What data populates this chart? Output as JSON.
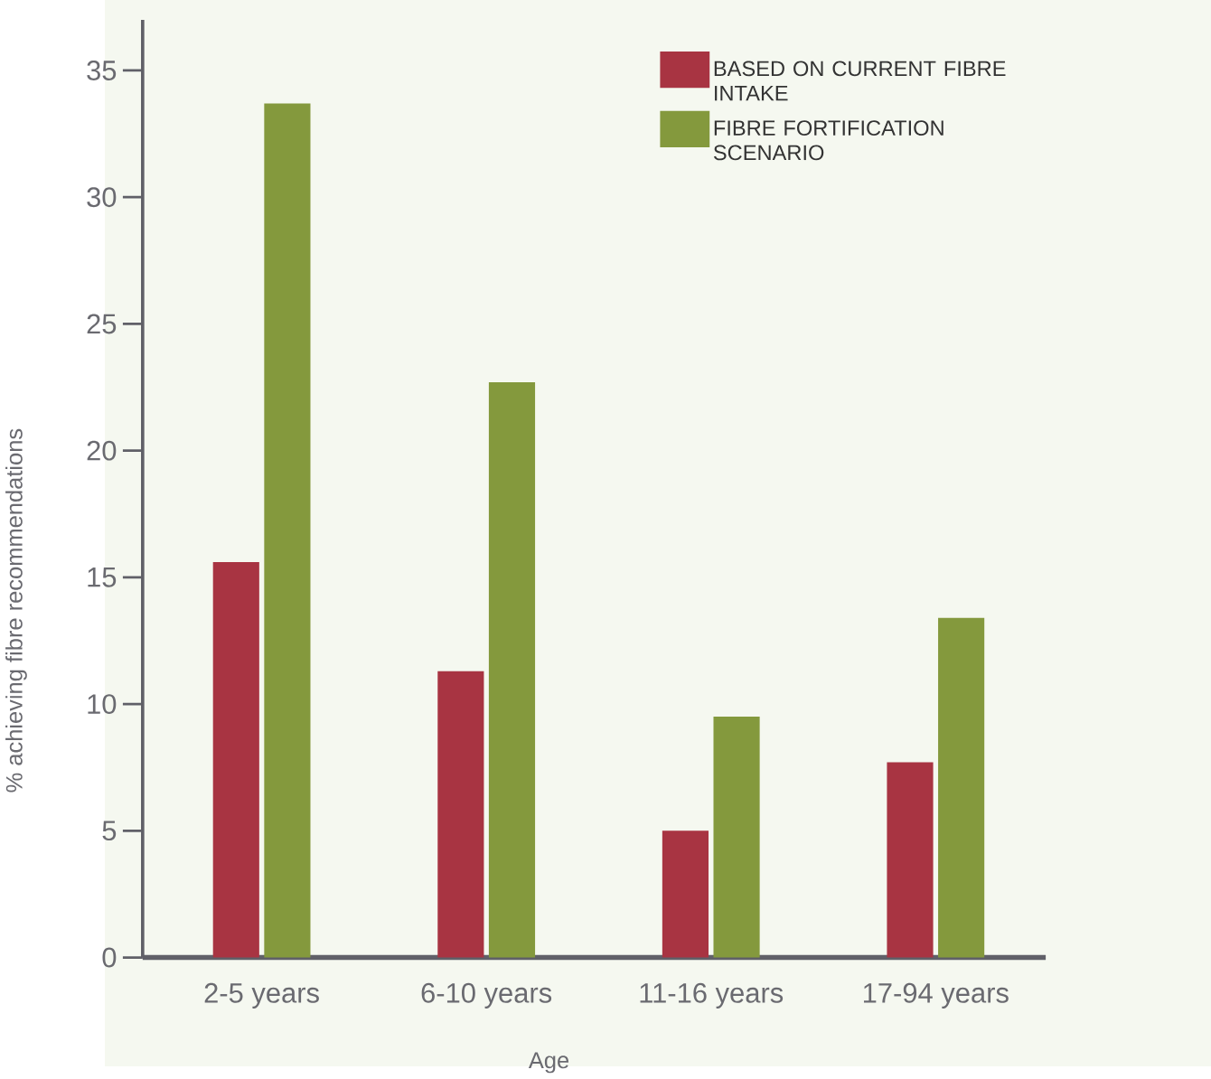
{
  "chart_data": {
    "type": "bar",
    "xlabel": "Age",
    "ylabel": "% achieving fibre recommendations",
    "categories": [
      "2-5 years",
      "6-10 years",
      "11-16 years",
      "17-94 years"
    ],
    "series": [
      {
        "name": "BASED ON CURRENT FIBRE INTAKE",
        "color": "#a83442",
        "values": [
          15.6,
          11.3,
          5.0,
          7.7
        ]
      },
      {
        "name": "FIBRE FORTIFICATION SCENARIO",
        "color": "#84993d",
        "values": [
          33.7,
          22.7,
          9.5,
          13.4
        ]
      }
    ],
    "ylim": [
      0,
      37
    ],
    "yticks": [
      0,
      5,
      10,
      15,
      20,
      25,
      30,
      35
    ],
    "grid": false,
    "legend": "top right"
  }
}
